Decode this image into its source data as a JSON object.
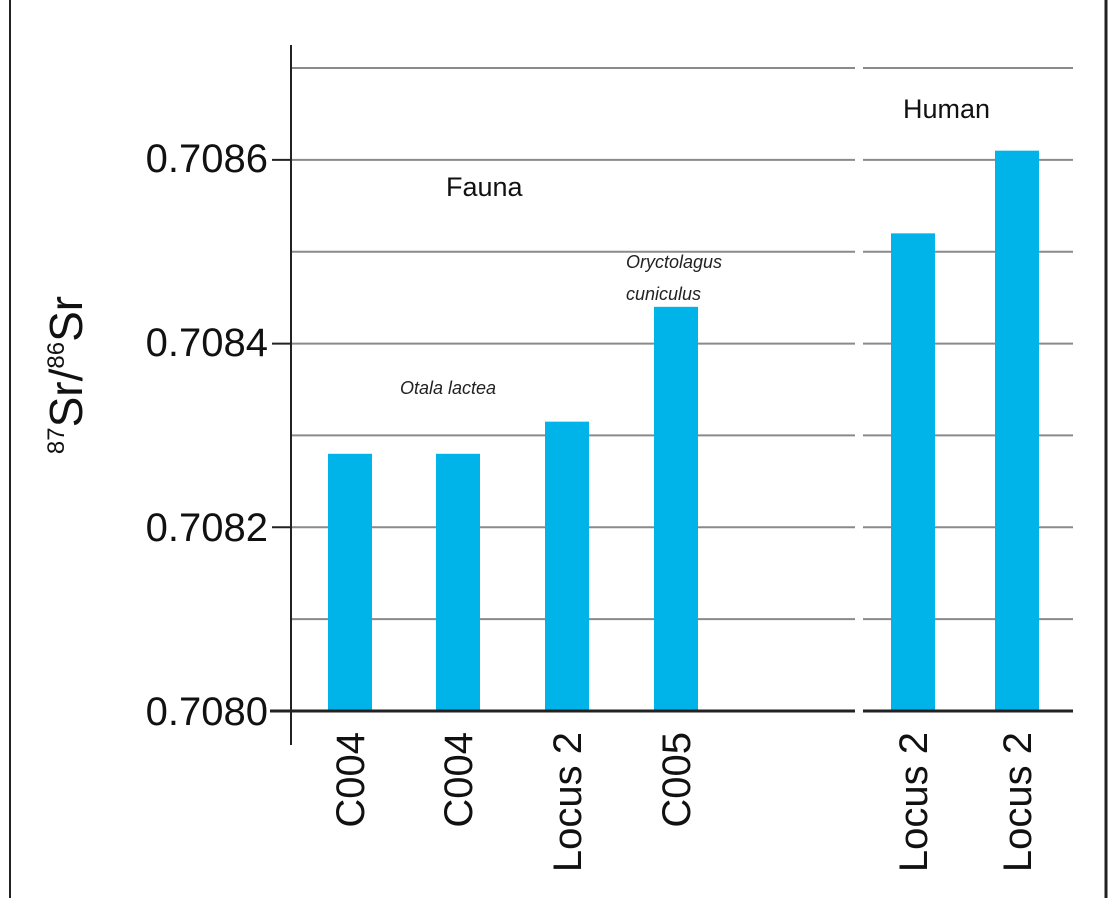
{
  "chart_data": {
    "type": "bar",
    "categories": [
      "C004",
      "C004",
      "Locus 2",
      "C005",
      "Locus 2",
      "Locus 2"
    ],
    "groups": [
      "Fauna",
      "Fauna",
      "Fauna",
      "Fauna",
      "Human",
      "Human"
    ],
    "values": [
      0.70828,
      0.70828,
      0.708315,
      0.70844,
      0.70852,
      0.70861
    ],
    "ylim": [
      0.708,
      0.7087
    ],
    "yticks": [
      "0.7080",
      "0.7082",
      "0.7084",
      "0.7086"
    ],
    "ytick_values": [
      0.708,
      0.7082,
      0.7084,
      0.7086
    ],
    "gridlines": [
      0.7081,
      0.7082,
      0.7083,
      0.7084,
      0.7085,
      0.7086,
      0.7087
    ],
    "ylabel": {
      "sup1": "87",
      "base1": "Sr/",
      "sup2": "86",
      "base2": "Sr"
    },
    "group_labels": {
      "fauna": "Fauna",
      "human": "Human"
    },
    "annotations": {
      "otala": "Otala lactea",
      "oryctolagus_1": "Oryctolagus",
      "oryctolagus_2": "cuniculus"
    },
    "bar_color": "#00b4ea",
    "grid": true
  }
}
